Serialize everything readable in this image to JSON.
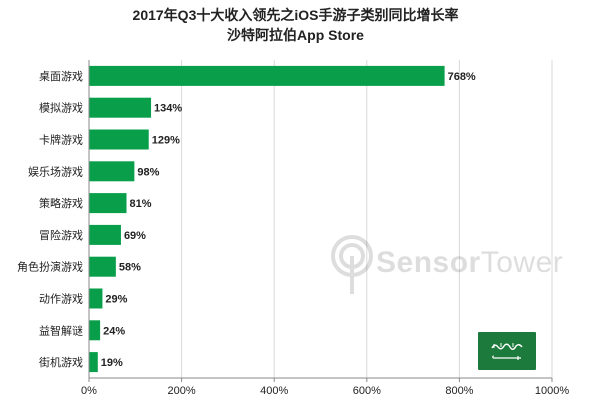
{
  "title_line1": "2017年Q3十大收入领先之iOS手游子类别同比增长率",
  "title_line2": "沙特阿拉伯App Store",
  "watermark": {
    "text_bold": "Sensor",
    "text_regular": "Tower"
  },
  "flag_icon": "saudi-arabia-flag-icon",
  "colors": {
    "bar": "#089e4a",
    "text": "#222222",
    "grid": "#d9d9d9",
    "axis": "#8a8a8a",
    "flag": "#1c7a3c"
  },
  "chart_data": {
    "type": "bar",
    "orientation": "horizontal",
    "title": "2017年Q3十大收入领先之iOS手游子类别同比增长率",
    "subtitle": "沙特阿拉伯App Store",
    "categories": [
      "桌面游戏",
      "模拟游戏",
      "卡牌游戏",
      "娱乐场游戏",
      "策略游戏",
      "冒险游戏",
      "角色扮演游戏",
      "动作游戏",
      "益智解谜",
      "街机游戏"
    ],
    "values": [
      768,
      134,
      129,
      98,
      81,
      69,
      58,
      29,
      24,
      19
    ],
    "value_labels": [
      "768%",
      "134%",
      "129%",
      "98%",
      "81%",
      "69%",
      "58%",
      "29%",
      "24%",
      "19%"
    ],
    "xlim": [
      0,
      1000
    ],
    "x_ticks": [
      0,
      200,
      400,
      600,
      800,
      1000
    ],
    "x_tick_labels": [
      "0%",
      "200%",
      "400%",
      "600%",
      "800%",
      "1000%"
    ],
    "xlabel": "",
    "ylabel": "",
    "grid": true,
    "legend": "none"
  }
}
